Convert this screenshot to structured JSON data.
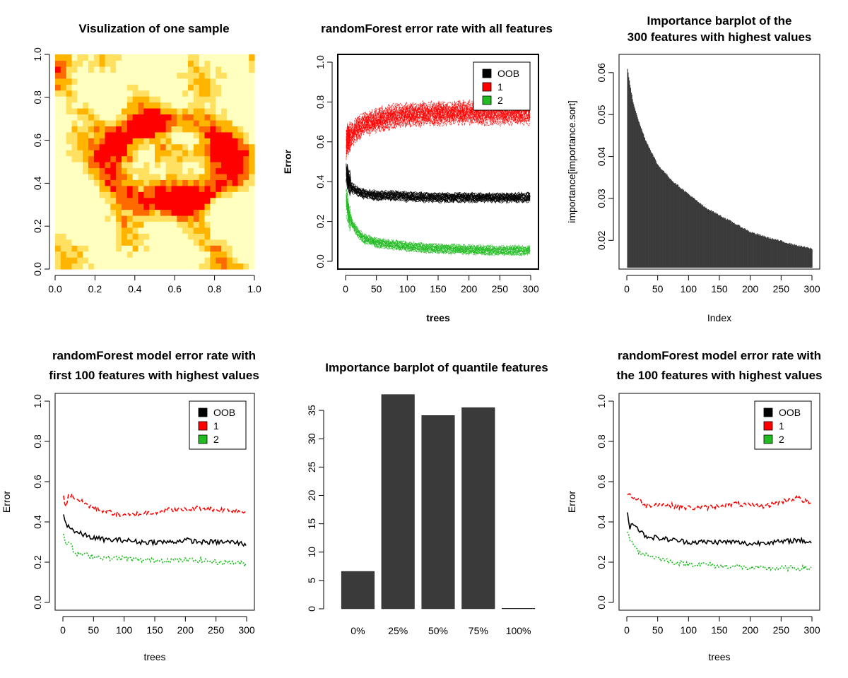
{
  "figure": {
    "background": "#ffffff"
  },
  "chart_data": [
    {
      "id": "sample",
      "type": "heatmap",
      "title": [
        "Visulization of one sample"
      ],
      "xlabel": "",
      "ylabel": "",
      "xlim": [
        0,
        1
      ],
      "ylim": [
        0,
        1
      ],
      "xticks": [
        "0.0",
        "0.2",
        "0.4",
        "0.6",
        "0.8",
        "1.0"
      ],
      "yticks": [
        "0.0",
        "0.2",
        "0.4",
        "0.6",
        "0.8",
        "1.0"
      ],
      "grid_size": 36,
      "colors": [
        "#ff0000",
        "#ff6a00",
        "#ffb400",
        "#ffe060",
        "#ffffc0"
      ],
      "description_values": "heat.colors image of a 36x36 sample; red band forms a closed loop around x 0.3-0.9, y 0.3-0.7"
    },
    {
      "id": "rf_all",
      "type": "line",
      "title": [
        "randomForest error rate with all features"
      ],
      "xlabel": "trees",
      "ylabel": "Error",
      "xlim": [
        0,
        300
      ],
      "ylim": [
        0,
        1
      ],
      "xticks": [
        "0",
        "50",
        "100",
        "150",
        "200",
        "250",
        "300"
      ],
      "yticks": [
        "0.0",
        "0.2",
        "0.4",
        "0.6",
        "0.8",
        "1.0"
      ],
      "legend": {
        "position": "top-right",
        "entries": [
          {
            "label": "OOB",
            "color": "#000000"
          },
          {
            "label": "1",
            "color": "#ff0000"
          },
          {
            "label": "2",
            "color": "#22bb22"
          }
        ]
      },
      "replicates": 20,
      "series": [
        {
          "name": "OOB",
          "color": "#000000",
          "x": [
            1,
            5,
            10,
            20,
            30,
            50,
            75,
            100,
            150,
            200,
            250,
            300
          ],
          "y": [
            0.45,
            0.4,
            0.37,
            0.35,
            0.34,
            0.33,
            0.33,
            0.325,
            0.32,
            0.32,
            0.32,
            0.32
          ]
        },
        {
          "name": "1",
          "color": "#ff0000",
          "x": [
            1,
            5,
            10,
            20,
            30,
            50,
            75,
            100,
            150,
            200,
            250,
            300
          ],
          "y": [
            0.6,
            0.62,
            0.64,
            0.67,
            0.69,
            0.71,
            0.73,
            0.74,
            0.745,
            0.75,
            0.745,
            0.75
          ]
        },
        {
          "name": "2",
          "color": "#22bb22",
          "x": [
            1,
            5,
            10,
            20,
            30,
            50,
            75,
            100,
            150,
            200,
            250,
            300
          ],
          "y": [
            0.3,
            0.24,
            0.19,
            0.14,
            0.11,
            0.09,
            0.08,
            0.07,
            0.06,
            0.055,
            0.05,
            0.05
          ]
        }
      ]
    },
    {
      "id": "importance",
      "type": "bar",
      "title": [
        "Importance barplot of the",
        "300 features with highest values"
      ],
      "xlabel": "Index",
      "ylabel": "importance[importance.sort]",
      "xlim": [
        0,
        300
      ],
      "ylim": [
        0.015,
        0.0625
      ],
      "xticks": [
        "0",
        "50",
        "100",
        "150",
        "200",
        "250",
        "300"
      ],
      "yticks": [
        "0.02",
        "0.03",
        "0.04",
        "0.05",
        "0.06"
      ],
      "bar_color": "#3a3a3a",
      "n_bars": 300,
      "profile": {
        "x": [
          1,
          5,
          10,
          20,
          30,
          50,
          75,
          100,
          125,
          150,
          175,
          200,
          225,
          250,
          275,
          300
        ],
        "y": [
          0.061,
          0.057,
          0.053,
          0.048,
          0.044,
          0.038,
          0.034,
          0.031,
          0.028,
          0.026,
          0.024,
          0.022,
          0.0208,
          0.0198,
          0.0188,
          0.018
        ]
      }
    },
    {
      "id": "rf_first100",
      "type": "line",
      "title": [
        "randomForest model error rate with",
        "first 100 features with highest values"
      ],
      "xlabel": "trees",
      "ylabel": "Error",
      "xlim": [
        0,
        300
      ],
      "ylim": [
        0,
        1
      ],
      "xticks": [
        "0",
        "50",
        "100",
        "150",
        "200",
        "250",
        "300"
      ],
      "yticks": [
        "0.0",
        "0.2",
        "0.4",
        "0.6",
        "0.8",
        "1.0"
      ],
      "legend": {
        "position": "top-right",
        "entries": [
          {
            "label": "OOB",
            "color": "#000000"
          },
          {
            "label": "1",
            "color": "#ff0000"
          },
          {
            "label": "2",
            "color": "#22bb22"
          }
        ]
      },
      "series": [
        {
          "name": "OOB",
          "color": "#000000",
          "dash": "",
          "x": [
            1,
            5,
            10,
            20,
            30,
            50,
            75,
            100,
            125,
            150,
            175,
            200,
            225,
            250,
            275,
            300
          ],
          "y": [
            0.43,
            0.39,
            0.38,
            0.35,
            0.34,
            0.32,
            0.31,
            0.31,
            0.3,
            0.3,
            0.3,
            0.31,
            0.3,
            0.3,
            0.3,
            0.29
          ]
        },
        {
          "name": "1",
          "color": "#ff0000",
          "dash": "6,3",
          "x": [
            1,
            5,
            10,
            20,
            30,
            50,
            75,
            100,
            125,
            150,
            175,
            200,
            225,
            250,
            275,
            300
          ],
          "y": [
            0.52,
            0.48,
            0.54,
            0.52,
            0.5,
            0.47,
            0.45,
            0.43,
            0.44,
            0.45,
            0.46,
            0.46,
            0.47,
            0.46,
            0.46,
            0.45
          ]
        },
        {
          "name": "2",
          "color": "#22bb22",
          "dash": "2,2",
          "x": [
            1,
            5,
            10,
            20,
            30,
            50,
            75,
            100,
            125,
            150,
            175,
            200,
            225,
            250,
            275,
            300
          ],
          "y": [
            0.34,
            0.3,
            0.3,
            0.24,
            0.24,
            0.23,
            0.22,
            0.22,
            0.21,
            0.21,
            0.21,
            0.21,
            0.21,
            0.2,
            0.2,
            0.19
          ]
        }
      ]
    },
    {
      "id": "quantile",
      "type": "bar",
      "title": [
        "Importance barplot of quantile features"
      ],
      "xlabel": "",
      "ylabel": "",
      "ylim": [
        0,
        38
      ],
      "yticks": [
        "0",
        "5",
        "10",
        "15",
        "20",
        "25",
        "30",
        "35"
      ],
      "categories": [
        "0%",
        "25%",
        "50%",
        "75%",
        "100%"
      ],
      "values": [
        6.6,
        37.8,
        34.1,
        35.5,
        0.1
      ],
      "bar_color": "#3a3a3a"
    },
    {
      "id": "rf_top100",
      "type": "line",
      "title": [
        "randomForest model error rate with",
        "the 100 features with highest values"
      ],
      "xlabel": "trees",
      "ylabel": "Error",
      "xlim": [
        0,
        300
      ],
      "ylim": [
        0,
        1
      ],
      "xticks": [
        "0",
        "50",
        "100",
        "150",
        "200",
        "250",
        "300"
      ],
      "yticks": [
        "0.0",
        "0.2",
        "0.4",
        "0.6",
        "0.8",
        "1.0"
      ],
      "legend": {
        "position": "top-right",
        "entries": [
          {
            "label": "OOB",
            "color": "#000000"
          },
          {
            "label": "1",
            "color": "#ff0000"
          },
          {
            "label": "2",
            "color": "#22bb22"
          }
        ]
      },
      "series": [
        {
          "name": "OOB",
          "color": "#000000",
          "dash": "",
          "x": [
            1,
            5,
            10,
            20,
            30,
            50,
            75,
            100,
            125,
            150,
            175,
            200,
            225,
            250,
            275,
            300
          ],
          "y": [
            0.45,
            0.37,
            0.4,
            0.36,
            0.33,
            0.32,
            0.31,
            0.3,
            0.3,
            0.3,
            0.3,
            0.29,
            0.3,
            0.3,
            0.31,
            0.3
          ]
        },
        {
          "name": "1",
          "color": "#ff0000",
          "dash": "6,3",
          "x": [
            1,
            5,
            10,
            20,
            30,
            50,
            75,
            100,
            125,
            150,
            175,
            200,
            225,
            250,
            275,
            300
          ],
          "y": [
            0.53,
            0.54,
            0.52,
            0.51,
            0.48,
            0.49,
            0.48,
            0.47,
            0.47,
            0.48,
            0.49,
            0.48,
            0.48,
            0.5,
            0.52,
            0.49
          ]
        },
        {
          "name": "2",
          "color": "#22bb22",
          "dash": "2,2",
          "x": [
            1,
            5,
            10,
            20,
            30,
            50,
            75,
            100,
            125,
            150,
            175,
            200,
            225,
            250,
            275,
            300
          ],
          "y": [
            0.36,
            0.3,
            0.3,
            0.25,
            0.24,
            0.22,
            0.2,
            0.19,
            0.19,
            0.18,
            0.18,
            0.17,
            0.17,
            0.17,
            0.17,
            0.17
          ]
        }
      ]
    }
  ]
}
